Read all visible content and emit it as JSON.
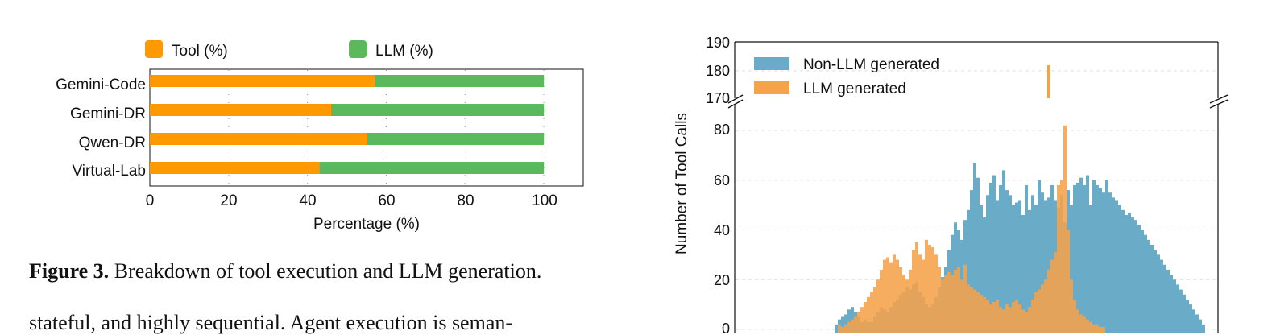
{
  "caption": {
    "label": "Figure 3.",
    "text": " Breakdown of tool execution and LLM generation."
  },
  "body_text": "stateful, and highly sequential. Agent execution is seman-",
  "colors": {
    "tool": "#ff9900",
    "llm": "#5cb85c",
    "non_llm": "#6aabc8",
    "llm_generated": "#f5a24a"
  },
  "chart_data": [
    {
      "type": "bar",
      "orientation": "horizontal",
      "stacked": true,
      "categories": [
        "Gemini-Code",
        "Gemini-DR",
        "Qwen-DR",
        "Virtual-Lab"
      ],
      "series": [
        {
          "name": "Tool (%)",
          "values": [
            57,
            46,
            55,
            43
          ]
        },
        {
          "name": "LLM (%)",
          "values": [
            43,
            54,
            45,
            57
          ]
        }
      ],
      "xlabel": "Percentage (%)",
      "ylabel": "",
      "xlim": [
        0,
        110
      ],
      "xticks": [
        "0",
        "20",
        "40",
        "60",
        "80",
        "100"
      ],
      "legend_position": "top"
    },
    {
      "type": "bar",
      "subtype": "histogram",
      "ylabel": "Number of Tool Calls",
      "xlabel": "",
      "broken_y_axis": true,
      "ylim_lower": [
        0,
        88
      ],
      "ylim_upper": [
        168,
        190
      ],
      "yticks_lower": [
        "0",
        "20",
        "40",
        "60",
        "80"
      ],
      "yticks_upper": [
        "170",
        "180",
        "190"
      ],
      "legend_position": "top-left",
      "series": [
        {
          "name": "Non-LLM generated",
          "values": [
            0,
            0,
            0,
            0,
            0,
            0,
            0,
            0,
            0,
            0,
            0,
            0,
            0,
            0,
            0,
            0,
            0,
            0,
            0,
            0,
            0,
            0,
            0,
            0,
            0,
            0,
            2,
            4,
            5,
            6,
            8,
            9,
            7,
            5,
            3,
            4,
            3,
            3,
            5,
            7,
            9,
            8,
            7,
            9,
            11,
            12,
            14,
            15,
            17,
            16,
            18,
            19,
            15,
            13,
            10,
            9,
            10,
            13,
            17,
            21,
            25,
            32,
            38,
            43,
            40,
            36,
            44,
            48,
            56,
            67,
            61,
            50,
            45,
            54,
            59,
            62,
            52,
            58,
            64,
            56,
            54,
            50,
            51,
            52,
            46,
            58,
            48,
            54,
            50,
            60,
            55,
            52,
            53,
            58,
            52,
            49,
            54,
            43,
            56,
            50,
            58,
            59,
            61,
            58,
            62,
            50,
            60,
            58,
            57,
            55,
            60,
            55,
            53,
            52,
            50,
            48,
            46,
            47,
            45,
            44,
            42,
            40,
            38,
            36,
            34,
            32,
            30,
            28,
            26,
            24,
            22,
            20,
            18,
            16,
            14,
            12,
            10,
            8,
            6,
            4,
            2
          ]
        },
        {
          "name": "LLM generated",
          "values": [
            0,
            0,
            0,
            0,
            0,
            0,
            0,
            0,
            0,
            0,
            0,
            0,
            0,
            0,
            0,
            0,
            0,
            0,
            0,
            0,
            0,
            0,
            0,
            0,
            0,
            0,
            0,
            2,
            1,
            2,
            3,
            4,
            5,
            7,
            9,
            11,
            13,
            15,
            17,
            20,
            24,
            28,
            29,
            27,
            30,
            28,
            25,
            22,
            20,
            24,
            32,
            35,
            30,
            28,
            36,
            34,
            33,
            30,
            25,
            20,
            22,
            23,
            22,
            24,
            25,
            20,
            26,
            18,
            17,
            16,
            15,
            14,
            13,
            12,
            10,
            11,
            12,
            9,
            8,
            10,
            9,
            11,
            12,
            10,
            8,
            7,
            9,
            12,
            15,
            16,
            18,
            20,
            24,
            28,
            31,
            58,
            60,
            82,
            40,
            20,
            12,
            8,
            6,
            5,
            4,
            3,
            2,
            2,
            1,
            1,
            0,
            0,
            0,
            0,
            0,
            0,
            0,
            0,
            0,
            0,
            0,
            0,
            0,
            0,
            0,
            0,
            0,
            0,
            0,
            0,
            0,
            0,
            0,
            0,
            0,
            0,
            0,
            0,
            0,
            0,
            0
          ]
        }
      ],
      "outlier": {
        "series": "LLM generated",
        "value": 182
      }
    }
  ]
}
